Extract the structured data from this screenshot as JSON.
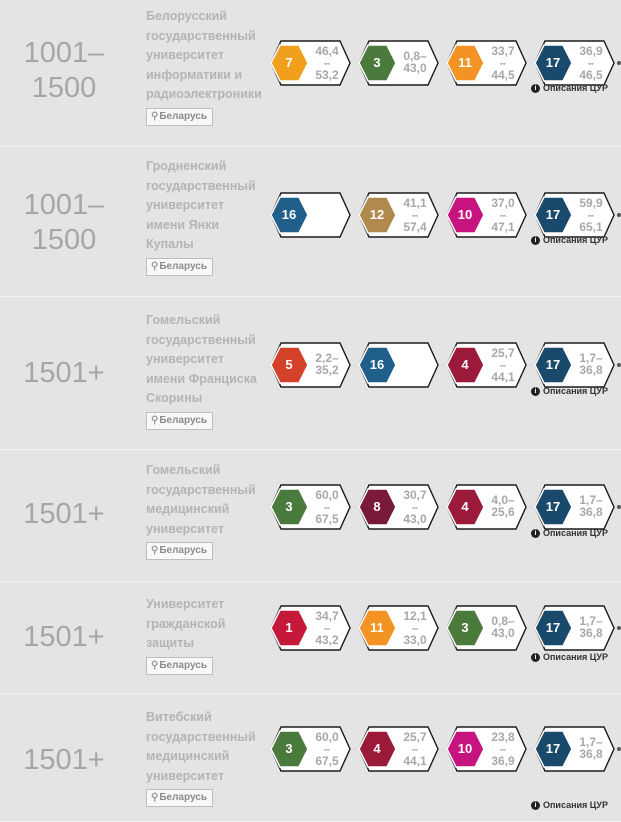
{
  "colors": {
    "1": "#c5193a",
    "3": "#4b7a3d",
    "4": "#9b1a3a",
    "5": "#d3412a",
    "7": "#f0a01c",
    "8": "#7a1a3b",
    "10": "#c6137f",
    "11": "#f39324",
    "12": "#b0894d",
    "16": "#1f5f8a",
    "17": "#1a4a6b"
  },
  "desc_label": "Описания ЦУР",
  "rows": [
    {
      "rank": "1001–\n1500",
      "name": "Белорусский\nгосударственный\nуниверситет\nинформатики и\nрадиоэлектроники",
      "country": "Беларусь",
      "sdgs": [
        {
          "n": "7",
          "v": [
            "46,4",
            "–",
            "53,2"
          ]
        },
        {
          "n": "3",
          "v": [
            "0,8–",
            "43,0"
          ]
        },
        {
          "n": "11",
          "v": [
            "33,7",
            "–",
            "44,5"
          ]
        },
        {
          "n": "17",
          "v": [
            "36,9",
            "–",
            "46,5"
          ]
        }
      ]
    },
    {
      "rank": "1001–\n1500",
      "name": "Гродненский\nгосударственный\nуниверситет\nимени Янки\nКупалы",
      "country": "Беларусь",
      "sdgs": [
        {
          "n": "16",
          "v": []
        },
        {
          "n": "12",
          "v": [
            "41,1",
            "–",
            "57,4"
          ]
        },
        {
          "n": "10",
          "v": [
            "37,0",
            "–",
            "47,1"
          ]
        },
        {
          "n": "17",
          "v": [
            "59,9",
            "–",
            "65,1"
          ]
        }
      ]
    },
    {
      "rank": "1501+",
      "name": "Гомельский\nгосударственный\nуниверситет\nимени Франциска\nСкорины",
      "country": "Беларусь",
      "sdgs": [
        {
          "n": "5",
          "v": [
            "2,2–",
            "35,2"
          ]
        },
        {
          "n": "16",
          "v": []
        },
        {
          "n": "4",
          "v": [
            "25,7",
            "–",
            "44,1"
          ]
        },
        {
          "n": "17",
          "v": [
            "1,7–",
            "36,8"
          ]
        }
      ]
    },
    {
      "rank": "1501+",
      "name": "Гомельский\nгосударственный\nмедицинский\nуниверситет",
      "country": "Беларусь",
      "sdgs": [
        {
          "n": "3",
          "v": [
            "60,0",
            "–",
            "67,5"
          ]
        },
        {
          "n": "8",
          "v": [
            "30,7",
            "–",
            "43,0"
          ]
        },
        {
          "n": "4",
          "v": [
            "4,0–",
            "25,6"
          ]
        },
        {
          "n": "17",
          "v": [
            "1,7–",
            "36,8"
          ]
        }
      ]
    },
    {
      "rank": "1501+",
      "name": "Университет\nгражданской\nзащиты",
      "country": "Беларусь",
      "sdgs": [
        {
          "n": "1",
          "v": [
            "34,7",
            "–",
            "43,2"
          ]
        },
        {
          "n": "11",
          "v": [
            "12,1",
            "–",
            "33,0"
          ]
        },
        {
          "n": "3",
          "v": [
            "0,8–",
            "43,0"
          ]
        },
        {
          "n": "17",
          "v": [
            "1,7–",
            "36,8"
          ]
        }
      ]
    },
    {
      "rank": "1501+",
      "name": "Витебский\nгосударственный\nмедицинский\nуниверситет",
      "country": "Беларусь",
      "sdgs": [
        {
          "n": "3",
          "v": [
            "60,0",
            "–",
            "67,5"
          ]
        },
        {
          "n": "4",
          "v": [
            "25,7",
            "–",
            "44,1"
          ]
        },
        {
          "n": "10",
          "v": [
            "23,8",
            "–",
            "36,9"
          ]
        },
        {
          "n": "17",
          "v": [
            "1,7–",
            "36,8"
          ]
        }
      ]
    }
  ]
}
